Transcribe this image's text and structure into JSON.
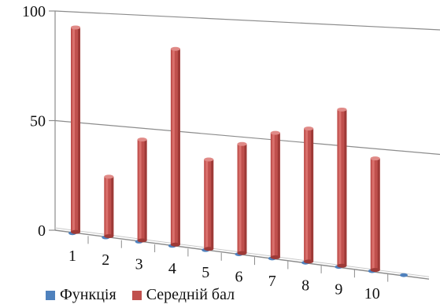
{
  "chart_data": {
    "type": "bar",
    "categories": [
      "1",
      "2",
      "3",
      "4",
      "5",
      "6",
      "7",
      "8",
      "9",
      "10"
    ],
    "series": [
      {
        "name": "Функція",
        "color": "#4f81bd",
        "values": [
          0,
          0,
          0,
          0,
          0,
          0,
          0,
          0,
          0,
          0
        ]
      },
      {
        "name": "Середній бал",
        "color": "#c0504d",
        "values": [
          93,
          27,
          45,
          86,
          39,
          47,
          53,
          56,
          65,
          46
        ]
      }
    ],
    "ylim": [
      0,
      100
    ],
    "yticks": [
      "0",
      "50",
      "100"
    ],
    "grid": true,
    "legend": "bottom",
    "style": "3d-perspective"
  }
}
